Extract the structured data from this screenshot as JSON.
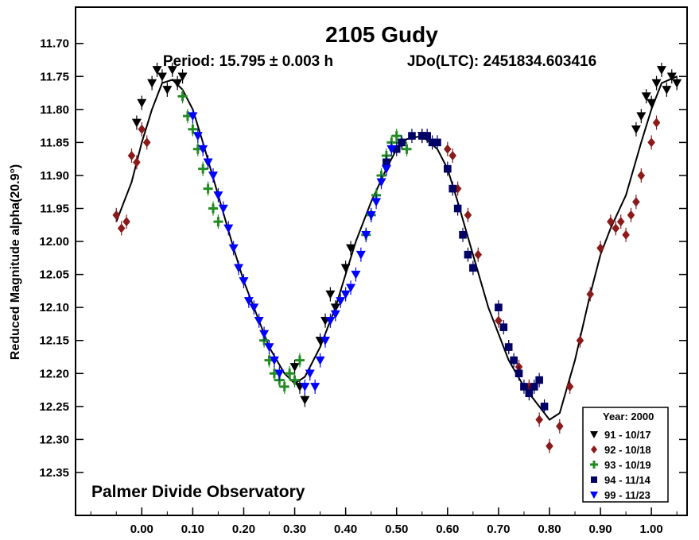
{
  "chart_data": {
    "type": "scatter",
    "title": "2105 Gudy",
    "subtitle_period": "Period: 15.795 ± 0.003 h",
    "subtitle_epoch": "JDo(LTC): 2451834.603416",
    "ylabel": "Reduced Magnitude alpha(20.9°)",
    "xlabel": "",
    "watermark": "Palmer Divide Observatory",
    "xlim": [
      -0.13,
      1.07
    ],
    "ylim": [
      11.645,
      12.415
    ],
    "y_inverted": true,
    "x_ticks": [
      "0.00",
      "0.10",
      "0.20",
      "0.30",
      "0.40",
      "0.50",
      "0.60",
      "0.70",
      "0.80",
      "0.90",
      "1.00"
    ],
    "y_ticks": [
      "11.70",
      "11.75",
      "11.80",
      "11.85",
      "11.90",
      "11.95",
      "12.00",
      "12.05",
      "12.10",
      "12.15",
      "12.20",
      "12.25",
      "12.30",
      "12.35"
    ],
    "legend_title": "Year: 2000",
    "legend_position": "bottom-right",
    "fit_curve": {
      "name": "Fourier fit",
      "color": "#000000",
      "x": [
        -0.05,
        -0.02,
        0.0,
        0.02,
        0.04,
        0.06,
        0.08,
        0.1,
        0.12,
        0.15,
        0.18,
        0.2,
        0.22,
        0.25,
        0.28,
        0.3,
        0.32,
        0.35,
        0.38,
        0.4,
        0.42,
        0.45,
        0.48,
        0.5,
        0.52,
        0.55,
        0.58,
        0.6,
        0.62,
        0.65,
        0.68,
        0.7,
        0.72,
        0.75,
        0.78,
        0.8,
        0.82,
        0.85,
        0.88,
        0.9,
        0.92,
        0.95,
        0.98,
        1.0,
        1.02,
        1.05
      ],
      "y": [
        11.97,
        11.91,
        11.85,
        11.8,
        11.76,
        11.755,
        11.77,
        11.8,
        11.85,
        11.93,
        12.01,
        12.06,
        12.1,
        12.16,
        12.2,
        12.215,
        12.205,
        12.16,
        12.1,
        12.05,
        12.0,
        11.94,
        11.89,
        11.86,
        11.845,
        11.84,
        11.86,
        11.89,
        11.94,
        12.02,
        12.1,
        12.14,
        12.18,
        12.22,
        12.25,
        12.27,
        12.26,
        12.18,
        12.08,
        12.02,
        11.98,
        11.93,
        11.85,
        11.8,
        11.76,
        11.75
      ]
    },
    "series": [
      {
        "name": "91 - 10/17",
        "marker": "triangle-down",
        "color": "#000000",
        "x": [
          -0.01,
          0.0,
          0.02,
          0.03,
          0.04,
          0.05,
          0.06,
          0.07,
          0.08,
          0.3,
          0.31,
          0.32,
          0.35,
          0.36,
          0.37,
          0.38,
          0.4,
          0.41,
          0.55,
          0.97,
          0.98,
          0.99,
          1.0,
          1.01,
          1.02,
          1.03,
          1.04,
          1.05
        ],
        "y": [
          11.82,
          11.79,
          11.76,
          11.74,
          11.75,
          11.77,
          11.74,
          11.76,
          11.75,
          12.19,
          12.22,
          12.24,
          12.15,
          12.12,
          12.08,
          12.1,
          12.04,
          12.01,
          11.84,
          11.83,
          11.81,
          11.78,
          11.79,
          11.76,
          11.74,
          11.77,
          11.75,
          11.76
        ]
      },
      {
        "name": "92 - 10/18",
        "marker": "diamond",
        "color": "#8b1a1a",
        "x": [
          -0.05,
          -0.04,
          -0.03,
          -0.02,
          -0.01,
          0.0,
          0.01,
          0.6,
          0.61,
          0.62,
          0.64,
          0.66,
          0.7,
          0.72,
          0.74,
          0.76,
          0.78,
          0.8,
          0.82,
          0.84,
          0.86,
          0.88,
          0.9,
          0.92,
          0.93,
          0.94,
          0.95,
          0.96,
          0.97,
          0.98,
          1.0,
          1.01
        ],
        "y": [
          11.96,
          11.98,
          11.97,
          11.87,
          11.88,
          11.83,
          11.85,
          11.86,
          11.87,
          11.92,
          11.96,
          12.02,
          12.12,
          12.16,
          12.19,
          12.22,
          12.27,
          12.31,
          12.28,
          12.22,
          12.15,
          12.08,
          12.01,
          11.97,
          11.98,
          11.97,
          11.99,
          11.96,
          11.94,
          11.9,
          11.85,
          11.82
        ]
      },
      {
        "name": "93 - 10/19",
        "marker": "cross",
        "color": "#228b22",
        "x": [
          0.08,
          0.09,
          0.1,
          0.11,
          0.12,
          0.13,
          0.14,
          0.15,
          0.24,
          0.25,
          0.26,
          0.27,
          0.28,
          0.29,
          0.3,
          0.31,
          0.44,
          0.45,
          0.46,
          0.47,
          0.48,
          0.49,
          0.5,
          0.51,
          0.52
        ],
        "y": [
          11.78,
          11.81,
          11.83,
          11.86,
          11.89,
          11.92,
          11.95,
          11.97,
          12.15,
          12.18,
          12.2,
          12.21,
          12.22,
          12.2,
          12.21,
          12.18,
          11.99,
          11.96,
          11.93,
          11.9,
          11.87,
          11.85,
          11.84,
          11.85,
          11.86
        ]
      },
      {
        "name": "94 - 11/14",
        "marker": "square",
        "color": "#000066",
        "x": [
          0.48,
          0.5,
          0.51,
          0.53,
          0.55,
          0.56,
          0.57,
          0.58,
          0.6,
          0.61,
          0.62,
          0.63,
          0.64,
          0.65,
          0.7,
          0.71,
          0.72,
          0.73,
          0.74,
          0.75,
          0.76,
          0.77,
          0.78,
          0.79
        ],
        "y": [
          11.88,
          11.86,
          11.85,
          11.84,
          11.84,
          11.84,
          11.85,
          11.85,
          11.89,
          11.92,
          11.95,
          11.99,
          12.02,
          12.04,
          12.1,
          12.13,
          12.16,
          12.18,
          12.2,
          12.22,
          12.23,
          12.22,
          12.21,
          12.25
        ]
      },
      {
        "name": "99 - 11/23",
        "marker": "triangle-down",
        "color": "#0000ff",
        "x": [
          0.1,
          0.11,
          0.12,
          0.13,
          0.14,
          0.15,
          0.16,
          0.17,
          0.18,
          0.19,
          0.2,
          0.21,
          0.22,
          0.23,
          0.24,
          0.25,
          0.26,
          0.27,
          0.32,
          0.33,
          0.34,
          0.35,
          0.36,
          0.37,
          0.38,
          0.39,
          0.4,
          0.41,
          0.42,
          0.43,
          0.44,
          0.45,
          0.46,
          0.47,
          0.48,
          0.49
        ],
        "y": [
          11.81,
          11.84,
          11.86,
          11.88,
          11.9,
          11.93,
          11.95,
          11.98,
          12.01,
          12.04,
          12.06,
          12.09,
          12.1,
          12.12,
          12.14,
          12.16,
          12.18,
          12.2,
          12.22,
          12.2,
          12.22,
          12.18,
          12.15,
          12.12,
          12.11,
          12.09,
          12.08,
          12.07,
          12.05,
          12.02,
          11.99,
          11.96,
          11.94,
          11.91,
          11.89,
          11.86
        ]
      }
    ]
  }
}
